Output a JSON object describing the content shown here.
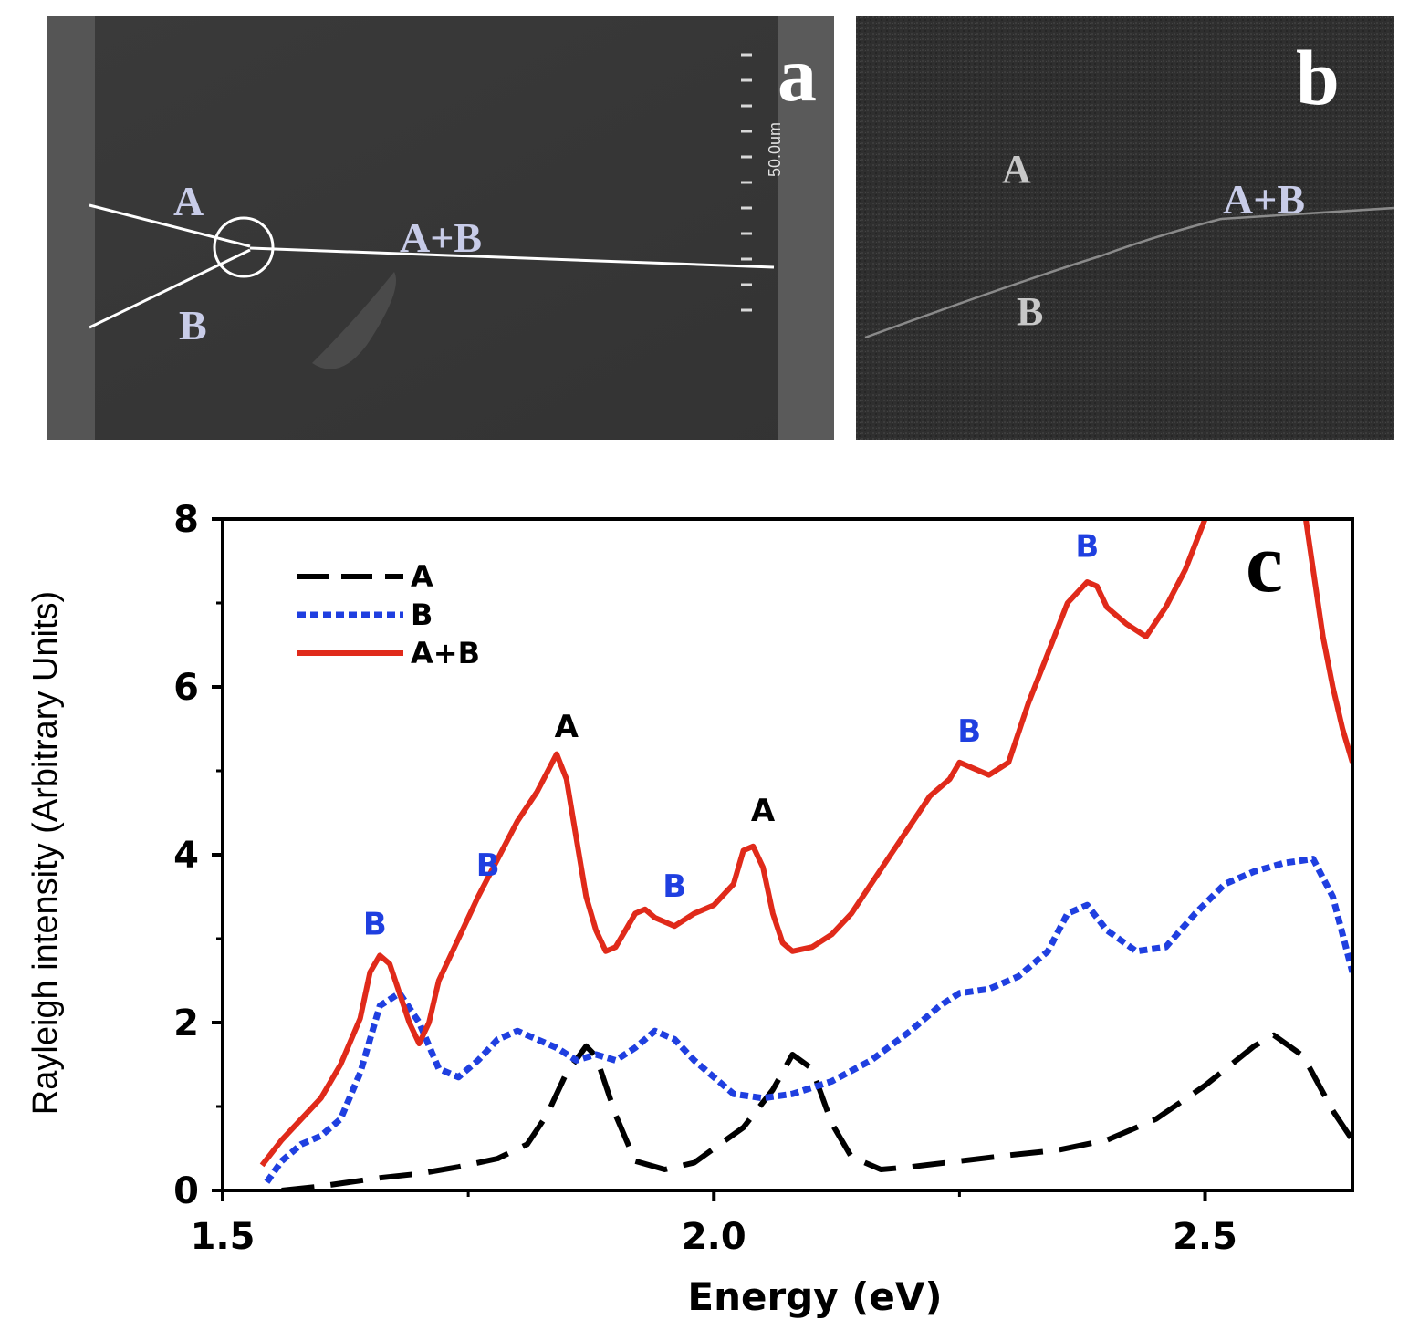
{
  "panels": {
    "a": {
      "letter": "a",
      "labels": {
        "A": "A",
        "B": "B",
        "AB": "A+B"
      },
      "scale_text": "50.0um"
    },
    "b": {
      "letter": "b",
      "labels": {
        "A": "A",
        "B": "B",
        "AB": "A+B"
      }
    },
    "c": {
      "letter": "c"
    }
  },
  "chart_data": {
    "type": "line",
    "title": "",
    "xlabel": "Energy (eV)",
    "ylabel": "Rayleigh intensity (Arbitrary Units)",
    "xlim": [
      1.5,
      2.65
    ],
    "ylim": [
      0,
      8
    ],
    "xticks": [
      1.5,
      2.0,
      2.5
    ],
    "xtick_labels": [
      "1.5",
      "2.0",
      "2.5"
    ],
    "yticks": [
      0,
      2,
      4,
      6,
      8
    ],
    "ytick_labels": [
      "0",
      "2",
      "4",
      "6",
      "8"
    ],
    "legend_position": "top-left",
    "series": [
      {
        "name": "A",
        "color": "#000000",
        "style": "dashed",
        "x": [
          1.56,
          1.6,
          1.63,
          1.66,
          1.7,
          1.74,
          1.78,
          1.81,
          1.83,
          1.85,
          1.87,
          1.88,
          1.9,
          1.92,
          1.95,
          1.98,
          2.0,
          2.03,
          2.06,
          2.08,
          2.1,
          2.12,
          2.14,
          2.17,
          2.2,
          2.25,
          2.3,
          2.35,
          2.4,
          2.45,
          2.5,
          2.55,
          2.57,
          2.6,
          2.63,
          2.65
        ],
        "y": [
          0.0,
          0.05,
          0.1,
          0.15,
          0.2,
          0.28,
          0.38,
          0.55,
          0.9,
          1.4,
          1.72,
          1.6,
          0.9,
          0.35,
          0.25,
          0.33,
          0.5,
          0.75,
          1.2,
          1.62,
          1.45,
          0.8,
          0.4,
          0.25,
          0.28,
          0.35,
          0.42,
          0.48,
          0.6,
          0.85,
          1.25,
          1.72,
          1.85,
          1.6,
          0.95,
          0.6
        ]
      },
      {
        "name": "B",
        "color": "#1f3fe0",
        "style": "dotted",
        "x": [
          1.545,
          1.56,
          1.58,
          1.6,
          1.62,
          1.64,
          1.66,
          1.68,
          1.7,
          1.72,
          1.74,
          1.76,
          1.78,
          1.8,
          1.82,
          1.84,
          1.86,
          1.88,
          1.9,
          1.92,
          1.94,
          1.96,
          1.98,
          2.0,
          2.02,
          2.05,
          2.08,
          2.12,
          2.16,
          2.2,
          2.23,
          2.25,
          2.28,
          2.31,
          2.34,
          2.36,
          2.38,
          2.4,
          2.43,
          2.46,
          2.49,
          2.52,
          2.55,
          2.58,
          2.61,
          2.63,
          2.65
        ],
        "y": [
          0.1,
          0.35,
          0.55,
          0.65,
          0.85,
          1.4,
          2.2,
          2.35,
          2.0,
          1.45,
          1.35,
          1.55,
          1.8,
          1.9,
          1.8,
          1.7,
          1.55,
          1.62,
          1.55,
          1.7,
          1.9,
          1.8,
          1.55,
          1.35,
          1.15,
          1.1,
          1.15,
          1.3,
          1.55,
          1.9,
          2.2,
          2.35,
          2.4,
          2.55,
          2.85,
          3.3,
          3.4,
          3.1,
          2.85,
          2.9,
          3.3,
          3.65,
          3.8,
          3.9,
          3.95,
          3.5,
          2.6
        ]
      },
      {
        "name": "A+B",
        "color": "#e02a1a",
        "style": "solid",
        "x": [
          1.54,
          1.56,
          1.58,
          1.6,
          1.62,
          1.64,
          1.65,
          1.66,
          1.67,
          1.68,
          1.69,
          1.7,
          1.71,
          1.72,
          1.74,
          1.76,
          1.78,
          1.8,
          1.82,
          1.84,
          1.85,
          1.86,
          1.87,
          1.88,
          1.89,
          1.9,
          1.91,
          1.92,
          1.93,
          1.94,
          1.96,
          1.98,
          2.0,
          2.02,
          2.03,
          2.04,
          2.05,
          2.06,
          2.07,
          2.08,
          2.1,
          2.12,
          2.14,
          2.16,
          2.18,
          2.2,
          2.22,
          2.24,
          2.25,
          2.26,
          2.28,
          2.3,
          2.32,
          2.34,
          2.36,
          2.38,
          2.39,
          2.4,
          2.42,
          2.44,
          2.46,
          2.48,
          2.5,
          2.52,
          2.54,
          2.56,
          2.58,
          2.6,
          2.61,
          2.62,
          2.63,
          2.64,
          2.65
        ],
        "y": [
          0.3,
          0.6,
          0.85,
          1.1,
          1.5,
          2.05,
          2.6,
          2.8,
          2.7,
          2.35,
          2.0,
          1.75,
          2.0,
          2.5,
          3.0,
          3.5,
          3.95,
          4.4,
          4.75,
          5.2,
          4.9,
          4.2,
          3.5,
          3.1,
          2.85,
          2.9,
          3.1,
          3.3,
          3.35,
          3.25,
          3.15,
          3.3,
          3.4,
          3.65,
          4.05,
          4.1,
          3.85,
          3.3,
          2.95,
          2.85,
          2.9,
          3.05,
          3.3,
          3.65,
          4.0,
          4.35,
          4.7,
          4.9,
          5.1,
          5.05,
          4.95,
          5.1,
          5.8,
          6.4,
          7.0,
          7.25,
          7.2,
          6.95,
          6.75,
          6.6,
          6.95,
          7.4,
          8.0,
          8.6,
          9.0,
          9.1,
          8.9,
          8.2,
          7.4,
          6.6,
          6.0,
          5.5,
          5.1
        ]
      }
    ],
    "annotations": [
      {
        "text": "B",
        "x": 1.655,
        "y": 3.05,
        "color": "#1f3fe0"
      },
      {
        "text": "B",
        "x": 1.77,
        "y": 3.75,
        "color": "#1f3fe0"
      },
      {
        "text": "A",
        "x": 1.85,
        "y": 5.4,
        "color": "#000000"
      },
      {
        "text": "B",
        "x": 1.96,
        "y": 3.5,
        "color": "#1f3fe0"
      },
      {
        "text": "A",
        "x": 2.05,
        "y": 4.4,
        "color": "#000000"
      },
      {
        "text": "B",
        "x": 2.26,
        "y": 5.35,
        "color": "#1f3fe0"
      },
      {
        "text": "B",
        "x": 2.38,
        "y": 7.55,
        "color": "#1f3fe0"
      }
    ]
  }
}
